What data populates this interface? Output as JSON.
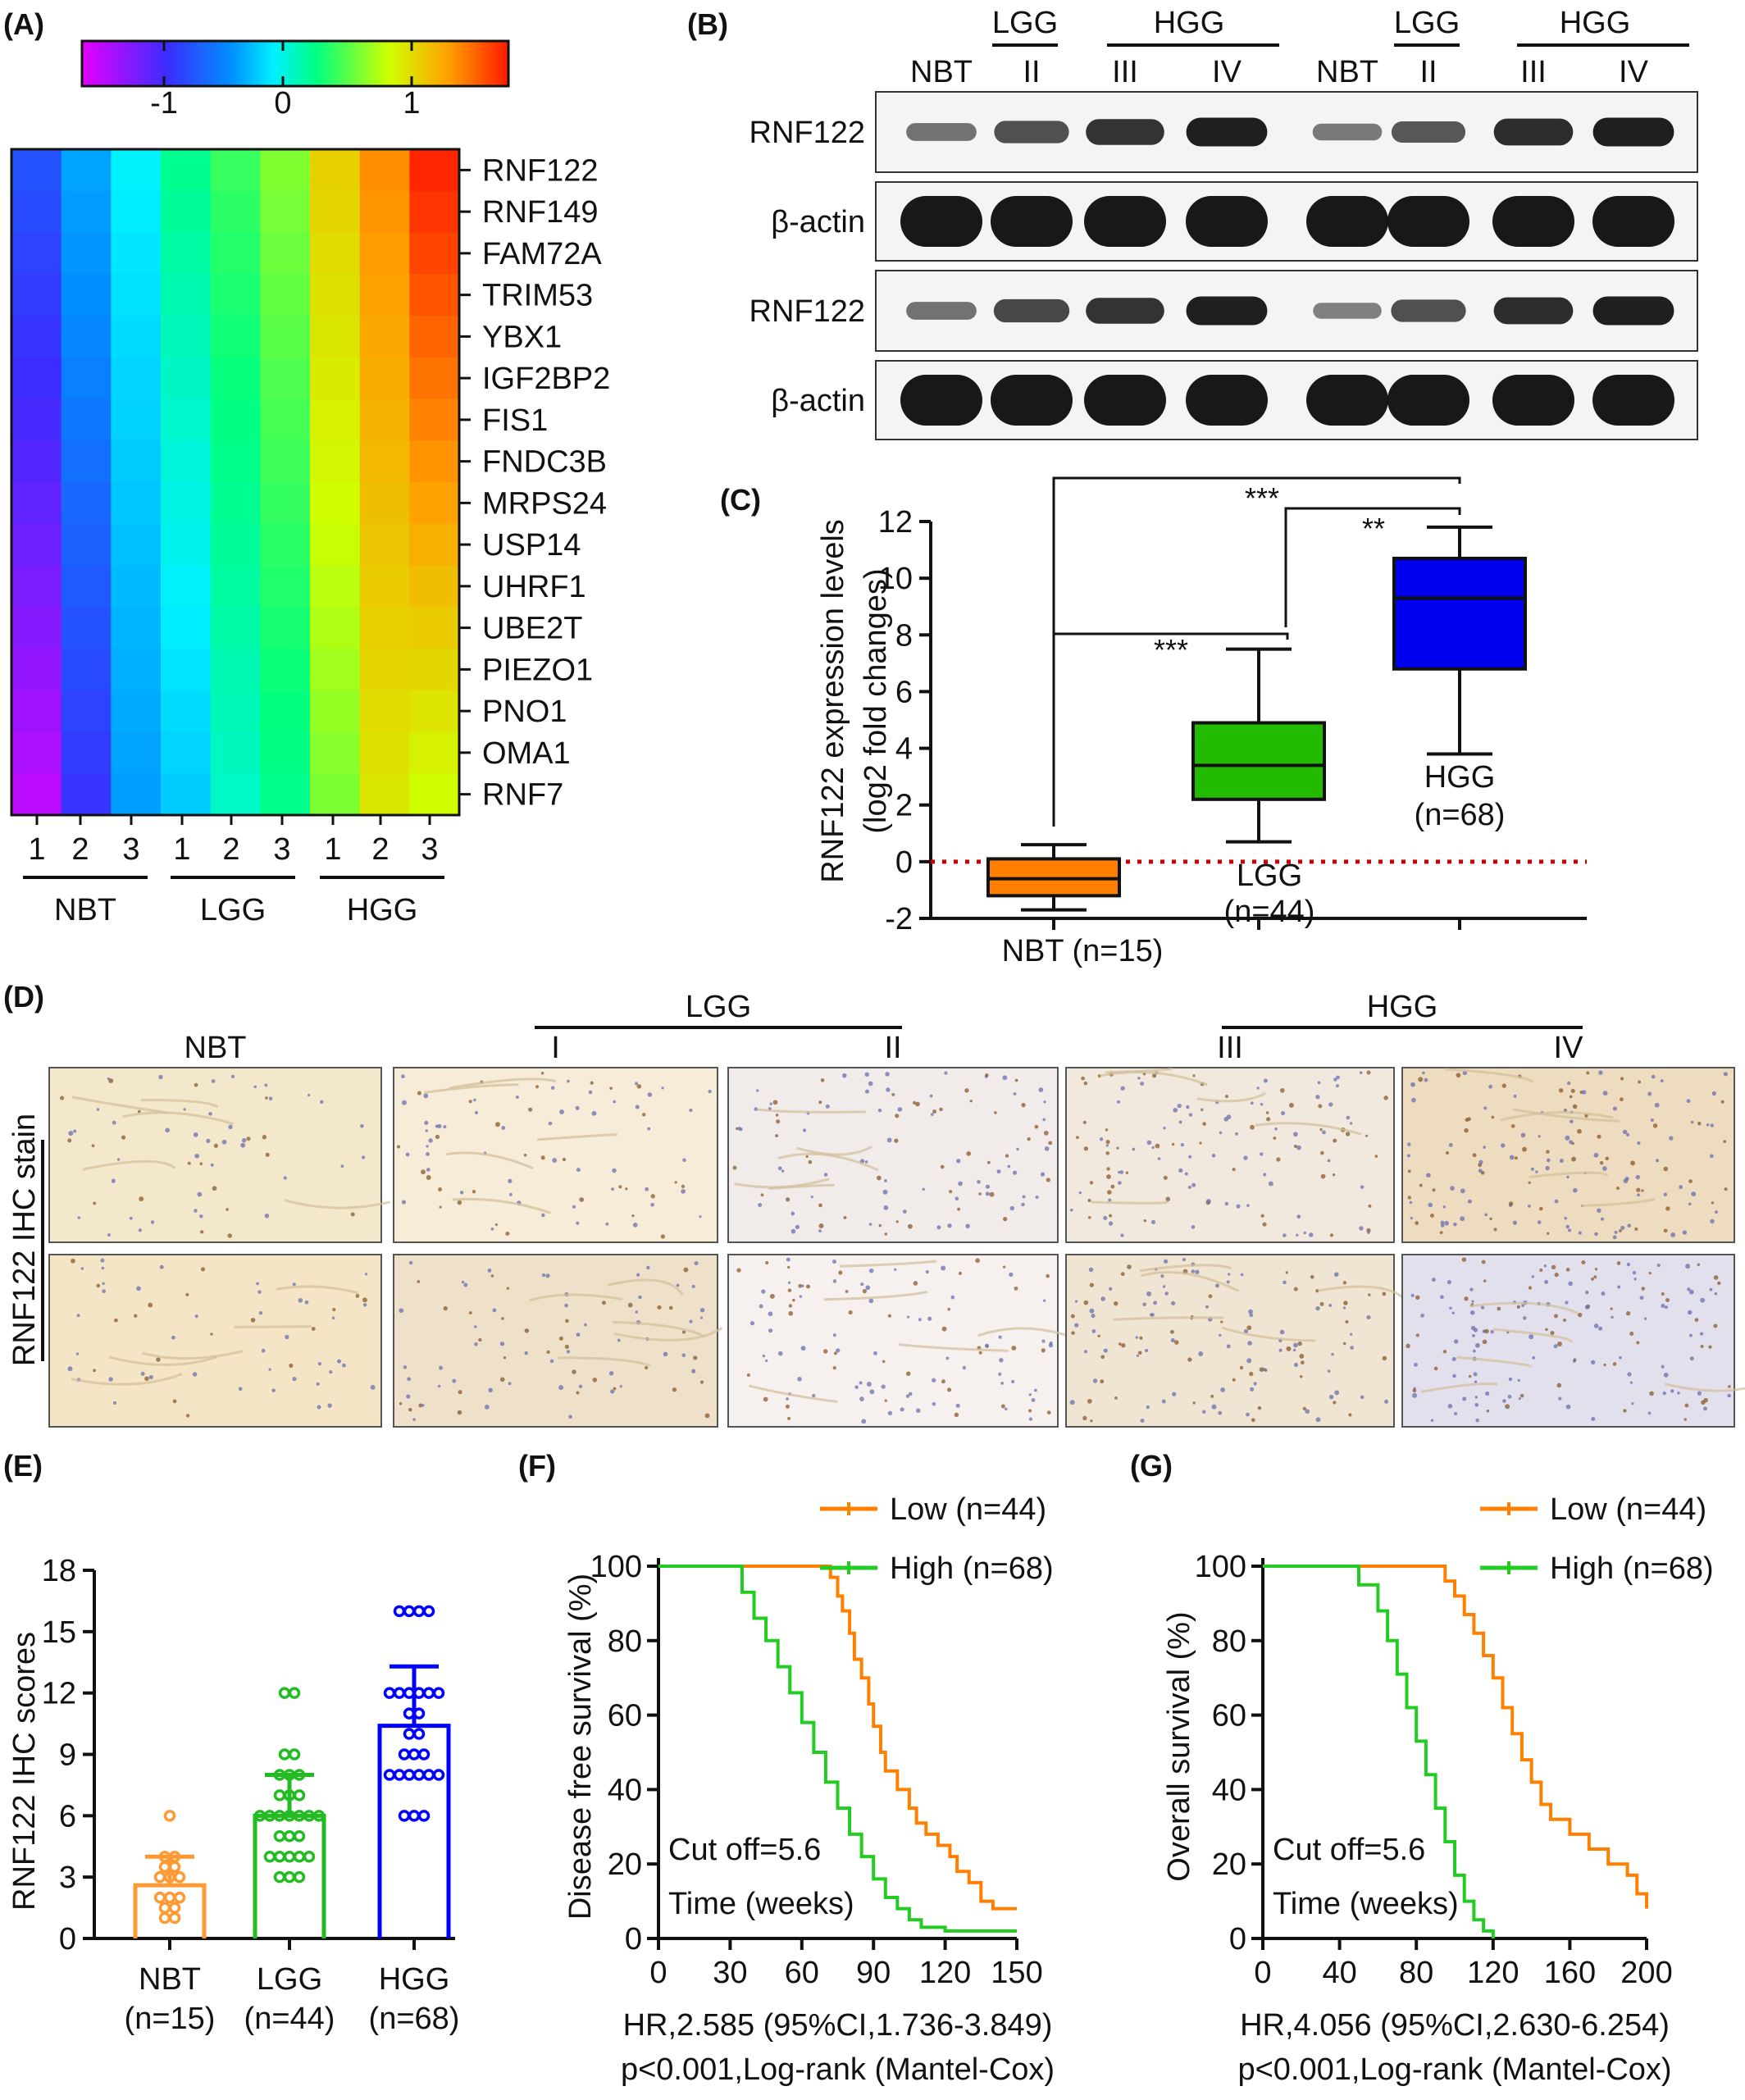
{
  "panels": {
    "A": "(A)",
    "B": "(B)",
    "C": "(C)",
    "D": "(D)",
    "E": "(E)",
    "F": "(F)",
    "G": "(G)"
  },
  "heatmap": {
    "colorbar_ticks": [
      "-1",
      "0",
      "1"
    ],
    "genes": [
      "RNF122",
      "RNF149",
      "FAM72A",
      "TRIM53",
      "YBX1",
      "IGF2BP2",
      "FIS1",
      "FNDC3B",
      "MRPS24",
      "USP14",
      "UHRF1",
      "UBE2T",
      "PIEZO1",
      "PNO1",
      "OMA1",
      "RNF7"
    ],
    "column_numbers": [
      "1",
      "2",
      "3",
      "1",
      "2",
      "3",
      "1",
      "2",
      "3"
    ],
    "groups": [
      "NBT",
      "LGG",
      "HGG"
    ],
    "colors": {
      "min": "#e400ff",
      "mid": "#00ff80",
      "max": "#ff1a00"
    }
  },
  "western": {
    "top_groups": [
      "LGG",
      "HGG",
      "LGG",
      "HGG"
    ],
    "lanes": [
      "NBT",
      "II",
      "III",
      "IV",
      "NBT",
      "II",
      "III",
      "IV"
    ],
    "rows": [
      "RNF122",
      "β-actin",
      "RNF122",
      "β-actin"
    ]
  },
  "chart_c": {
    "type": "box",
    "ylabel_line1": "RNF122 expression levels",
    "ylabel_line2": "(log2 fold changes)",
    "yticks": [
      "-2",
      "0",
      "2",
      "4",
      "6",
      "8",
      "10",
      "12"
    ],
    "ylim": [
      -2,
      12
    ],
    "groups": [
      {
        "label1": "NBT (n=15)",
        "label2": "",
        "min": -1.7,
        "q1": -1.2,
        "median": -0.6,
        "q3": 0.1,
        "max": 0.6,
        "color": "#ff8000"
      },
      {
        "label1": "LGG",
        "label2": "(n=44)",
        "min": 0.7,
        "q1": 2.2,
        "median": 3.4,
        "q3": 4.9,
        "max": 7.5,
        "color": "#22bb00"
      },
      {
        "label1": "HGG",
        "label2": "(n=68)",
        "min": 3.8,
        "q1": 6.8,
        "median": 9.3,
        "q3": 10.7,
        "max": 11.8,
        "color": "#0000ee"
      }
    ],
    "sig": [
      "***",
      "***",
      "**"
    ]
  },
  "ihc": {
    "top_groups": [
      "LGG",
      "HGG"
    ],
    "columns": [
      "NBT",
      "I",
      "II",
      "III",
      "IV"
    ],
    "row_label": "RNF122 IHC stain"
  },
  "chart_e": {
    "type": "scatter",
    "ylabel": "RNF122 IHC scores",
    "yticks": [
      "0",
      "3",
      "6",
      "9",
      "12",
      "15",
      "18"
    ],
    "ylim": [
      0,
      18
    ],
    "groups": [
      {
        "label1": "NBT",
        "label2": "(n=15)",
        "mean": 2.6,
        "sd": 1.4,
        "color": "#ff9933",
        "values": [
          6,
          4,
          4,
          3.5,
          3.5,
          3,
          3,
          3,
          2,
          2,
          2,
          1.5,
          1.5,
          1,
          1
        ]
      },
      {
        "label1": "LGG",
        "label2": "(n=44)",
        "mean": 6.0,
        "sd": 2.0,
        "color": "#22bb22",
        "values": [
          12,
          12,
          9,
          9,
          8,
          8,
          8,
          7,
          7,
          7,
          6,
          6,
          6,
          6,
          6,
          6,
          6,
          5,
          5,
          5,
          4,
          4,
          4,
          4,
          4,
          3,
          3,
          3
        ]
      },
      {
        "label1": "HGG",
        "label2": "(n=68)",
        "mean": 10.4,
        "sd": 2.9,
        "color": "#0000ff",
        "values": [
          16,
          16,
          16,
          16,
          12,
          12,
          12,
          12,
          12,
          12,
          11,
          11,
          10,
          10,
          9,
          9,
          9,
          8,
          8,
          8,
          8,
          8,
          8,
          6,
          6,
          6
        ]
      }
    ]
  },
  "chart_f": {
    "type": "line",
    "ylabel": "Disease free survival (%)",
    "xticks": [
      "0",
      "30",
      "60",
      "90",
      "120",
      "150"
    ],
    "yticks": [
      "0",
      "20",
      "40",
      "60",
      "80",
      "100"
    ],
    "xlim": [
      0,
      150
    ],
    "ylim": [
      0,
      100
    ],
    "legend": [
      "Low (n=44)",
      "High (n=68)"
    ],
    "annotation1": "Cut off=5.6",
    "annotation2": "Time (weeks)",
    "footer1": "HR,2.585 (95%CI,1.736-3.849)",
    "footer2": "p<0.001,Log-rank (Mantel-Cox)",
    "series": [
      {
        "name": "Low (n=44)",
        "color": "#ff8000",
        "x": [
          0,
          70,
          72,
          75,
          77,
          80,
          82,
          85,
          88,
          90,
          93,
          95,
          100,
          105,
          108,
          112,
          117,
          122,
          125,
          130,
          135,
          140,
          150
        ],
        "y": [
          100,
          100,
          97,
          92,
          88,
          82,
          75,
          70,
          63,
          57,
          50,
          45,
          40,
          35,
          31,
          28,
          25,
          22,
          18,
          15,
          10,
          8,
          8
        ]
      },
      {
        "name": "High (n=68)",
        "color": "#22cc22",
        "x": [
          0,
          30,
          35,
          40,
          45,
          50,
          55,
          60,
          65,
          70,
          75,
          80,
          85,
          90,
          95,
          100,
          105,
          110,
          120,
          150
        ],
        "y": [
          100,
          100,
          93,
          86,
          80,
          73,
          66,
          58,
          50,
          42,
          35,
          28,
          22,
          16,
          11,
          8,
          5,
          3,
          2,
          2
        ]
      }
    ]
  },
  "chart_g": {
    "type": "line",
    "ylabel": "Overall survival (%)",
    "xticks": [
      "0",
      "40",
      "80",
      "120",
      "160",
      "200"
    ],
    "yticks": [
      "0",
      "20",
      "40",
      "60",
      "80",
      "100"
    ],
    "xlim": [
      0,
      200
    ],
    "ylim": [
      0,
      100
    ],
    "legend": [
      "Low (n=44)",
      "High (n=68)"
    ],
    "annotation1": "Cut off=5.6",
    "annotation2": "Time (weeks)",
    "footer1": "HR,4.056 (95%CI,2.630-6.254)",
    "footer2": "p<0.001,Log-rank (Mantel-Cox)",
    "series": [
      {
        "name": "Low (n=44)",
        "color": "#ff8000",
        "x": [
          0,
          90,
          95,
          100,
          105,
          110,
          115,
          120,
          125,
          130,
          135,
          140,
          145,
          150,
          160,
          170,
          180,
          190,
          195,
          200
        ],
        "y": [
          100,
          100,
          96,
          92,
          87,
          82,
          76,
          70,
          62,
          55,
          48,
          42,
          36,
          32,
          28,
          24,
          20,
          17,
          12,
          8
        ]
      },
      {
        "name": "High (n=68)",
        "color": "#22cc22",
        "x": [
          0,
          40,
          50,
          60,
          65,
          70,
          75,
          80,
          85,
          90,
          95,
          100,
          105,
          110,
          115,
          120
        ],
        "y": [
          100,
          100,
          95,
          88,
          80,
          71,
          62,
          53,
          44,
          35,
          26,
          17,
          10,
          5,
          2,
          0
        ]
      }
    ]
  }
}
